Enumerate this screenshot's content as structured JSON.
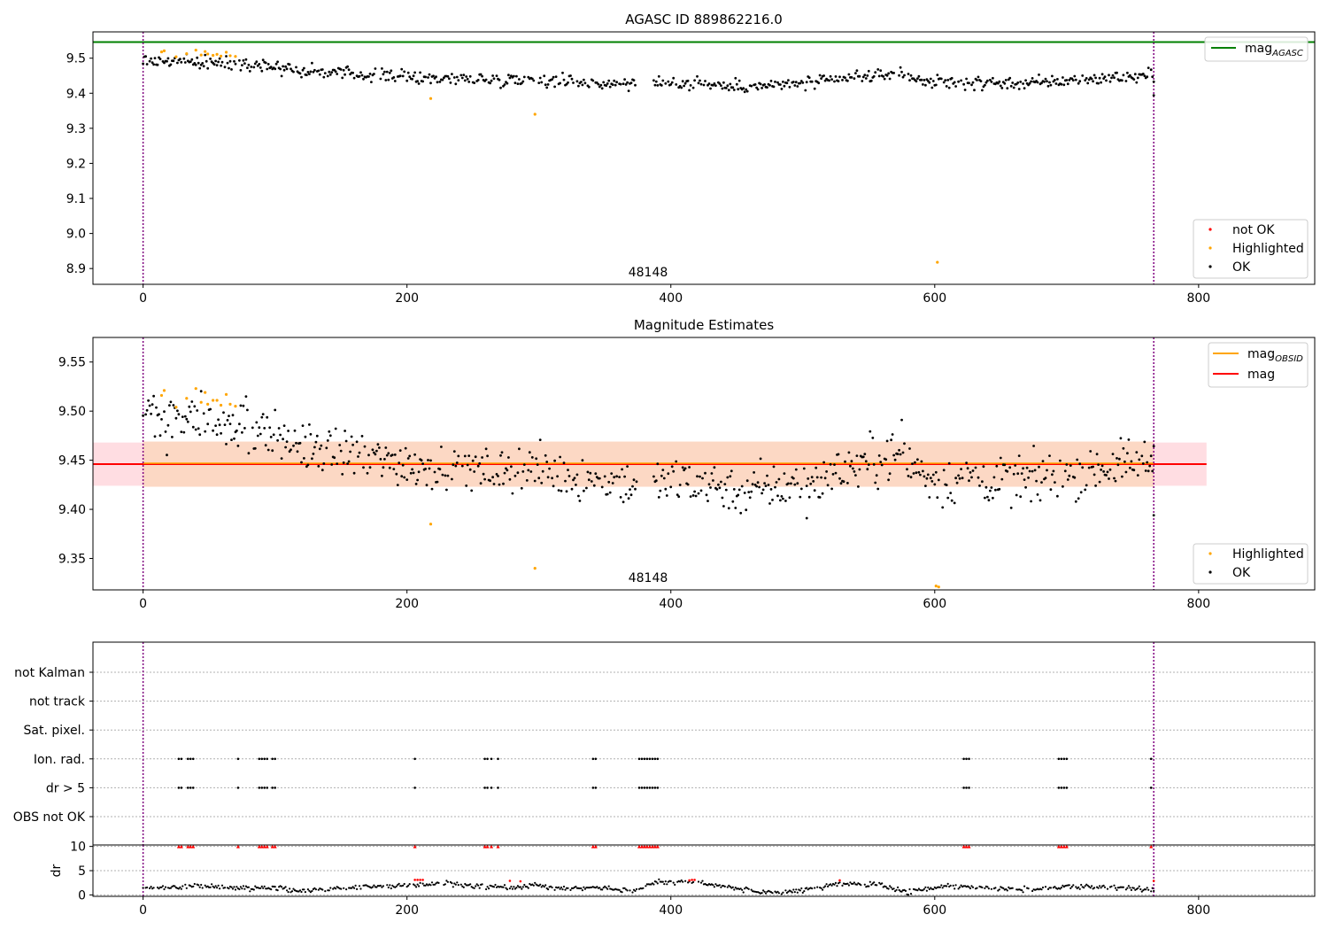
{
  "chart_data": [
    {
      "type": "scatter",
      "title": "AGASC ID 889862216.0",
      "xlim": [
        -38,
        888
      ],
      "ylim": [
        8.855,
        9.575
      ],
      "xticks": [
        0,
        200,
        400,
        600,
        800
      ],
      "yticks": [
        8.9,
        9.0,
        9.1,
        9.2,
        9.3,
        9.4,
        9.5
      ],
      "ytick_labels": [
        "8.9",
        "9.0",
        "9.1",
        "9.2",
        "9.3",
        "9.4",
        "9.5"
      ],
      "vlines": [
        0,
        766
      ],
      "hlines": [
        {
          "y": 9.546,
          "x0": -38,
          "x1": 888,
          "color": "#008000"
        }
      ],
      "obsid_label": {
        "text": "48148",
        "x": 383
      },
      "line_legend": [
        {
          "base": "mag",
          "sub": "AGASC",
          "color": "#008000"
        }
      ],
      "point_legend": [
        {
          "label": "not OK",
          "color": "#ff0000"
        },
        {
          "label": "Highlighted",
          "color": "#ffa500"
        },
        {
          "label": "OK",
          "color": "#000000"
        }
      ],
      "highlighted_points": [
        {
          "x": 14,
          "y": 9.518
        },
        {
          "x": 16,
          "y": 9.521
        },
        {
          "x": 25,
          "y": 9.504
        },
        {
          "x": 33,
          "y": 9.513
        },
        {
          "x": 40,
          "y": 9.523
        },
        {
          "x": 44,
          "y": 9.509
        },
        {
          "x": 47,
          "y": 9.519
        },
        {
          "x": 49,
          "y": 9.512
        },
        {
          "x": 53,
          "y": 9.508
        },
        {
          "x": 56,
          "y": 9.511
        },
        {
          "x": 59,
          "y": 9.506
        },
        {
          "x": 63,
          "y": 9.517
        },
        {
          "x": 66,
          "y": 9.507
        },
        {
          "x": 70,
          "y": 9.505
        },
        {
          "x": 218,
          "y": 9.385
        },
        {
          "x": 297,
          "y": 9.34
        },
        {
          "x": 602,
          "y": 8.918
        }
      ],
      "ok_trend": [
        {
          "x": 0,
          "y": 9.492
        },
        {
          "x": 30,
          "y": 9.49
        },
        {
          "x": 80,
          "y": 9.485
        },
        {
          "x": 120,
          "y": 9.465
        },
        {
          "x": 160,
          "y": 9.455
        },
        {
          "x": 210,
          "y": 9.445
        },
        {
          "x": 260,
          "y": 9.44
        },
        {
          "x": 300,
          "y": 9.44
        },
        {
          "x": 340,
          "y": 9.43
        },
        {
          "x": 380,
          "y": 9.425
        },
        {
          "x": 420,
          "y": 9.43
        },
        {
          "x": 450,
          "y": 9.42
        },
        {
          "x": 480,
          "y": 9.422
        },
        {
          "x": 510,
          "y": 9.43
        },
        {
          "x": 540,
          "y": 9.445
        },
        {
          "x": 570,
          "y": 9.455
        },
        {
          "x": 600,
          "y": 9.43
        },
        {
          "x": 640,
          "y": 9.43
        },
        {
          "x": 680,
          "y": 9.43
        },
        {
          "x": 720,
          "y": 9.442
        },
        {
          "x": 766,
          "y": 9.45
        }
      ],
      "ok_noise": 0.009,
      "ok_gaps": [
        [
          375,
          386
        ]
      ],
      "ok_extra": [
        {
          "x": 766,
          "y": 9.394
        }
      ]
    },
    {
      "type": "scatter",
      "title": "Magnitude Estimates",
      "xlim": [
        -38,
        888
      ],
      "ylim": [
        9.318,
        9.575
      ],
      "xticks": [
        0,
        200,
        400,
        600,
        800
      ],
      "yticks": [
        9.35,
        9.4,
        9.45,
        9.5,
        9.55
      ],
      "ytick_labels": [
        "9.35",
        "9.40",
        "9.45",
        "9.50",
        "9.55"
      ],
      "vlines": [
        0,
        766
      ],
      "mean_mag": 9.446,
      "band_outer": [
        9.424,
        9.468
      ],
      "band_inner": [
        9.423,
        9.469
      ],
      "band_extent": [
        -38,
        806
      ],
      "band_inner_extent": [
        0,
        766
      ],
      "band_colors": {
        "outer": "#ffdde2",
        "inner": "#fcd8c4",
        "mean_line": "#ff0000",
        "obsid_line": "#ffa500"
      },
      "obsid_label": {
        "text": "48148",
        "x": 383
      },
      "line_legend": [
        {
          "base": "mag",
          "sub": "OBSID",
          "color": "#ffa500"
        },
        {
          "base": "mag",
          "sub": "",
          "color": "#ff0000"
        }
      ],
      "point_legend": [
        {
          "label": "Highlighted",
          "color": "#ffa500"
        },
        {
          "label": "OK",
          "color": "#000000"
        }
      ],
      "highlighted_points": [
        {
          "x": 14,
          "y": 9.516
        },
        {
          "x": 16,
          "y": 9.521
        },
        {
          "x": 25,
          "y": 9.504
        },
        {
          "x": 33,
          "y": 9.513
        },
        {
          "x": 40,
          "y": 9.523
        },
        {
          "x": 44,
          "y": 9.509
        },
        {
          "x": 47,
          "y": 9.519
        },
        {
          "x": 49,
          "y": 9.507
        },
        {
          "x": 53,
          "y": 9.511
        },
        {
          "x": 56,
          "y": 9.511
        },
        {
          "x": 59,
          "y": 9.506
        },
        {
          "x": 63,
          "y": 9.517
        },
        {
          "x": 66,
          "y": 9.507
        },
        {
          "x": 70,
          "y": 9.505
        },
        {
          "x": 218,
          "y": 9.385
        },
        {
          "x": 297,
          "y": 9.34
        },
        {
          "x": 601,
          "y": 9.322
        },
        {
          "x": 603,
          "y": 9.321
        }
      ],
      "ok_trend": [
        {
          "x": 0,
          "y": 9.492
        },
        {
          "x": 30,
          "y": 9.49
        },
        {
          "x": 80,
          "y": 9.485
        },
        {
          "x": 120,
          "y": 9.465
        },
        {
          "x": 160,
          "y": 9.455
        },
        {
          "x": 210,
          "y": 9.445
        },
        {
          "x": 260,
          "y": 9.44
        },
        {
          "x": 300,
          "y": 9.44
        },
        {
          "x": 340,
          "y": 9.43
        },
        {
          "x": 380,
          "y": 9.425
        },
        {
          "x": 420,
          "y": 9.43
        },
        {
          "x": 450,
          "y": 9.42
        },
        {
          "x": 480,
          "y": 9.422
        },
        {
          "x": 510,
          "y": 9.43
        },
        {
          "x": 540,
          "y": 9.445
        },
        {
          "x": 570,
          "y": 9.455
        },
        {
          "x": 600,
          "y": 9.43
        },
        {
          "x": 640,
          "y": 9.43
        },
        {
          "x": 680,
          "y": 9.43
        },
        {
          "x": 720,
          "y": 9.442
        },
        {
          "x": 766,
          "y": 9.45
        }
      ],
      "ok_noise": 0.012,
      "ok_gaps": [
        [
          375,
          386
        ]
      ],
      "ok_extra": [
        {
          "x": 766,
          "y": 9.394
        },
        {
          "x": 575,
          "y": 9.491
        },
        {
          "x": 503,
          "y": 9.391
        }
      ]
    },
    {
      "type": "scatter",
      "title": "",
      "xlim": [
        -38,
        888
      ],
      "xticks": [
        0,
        200,
        400,
        600,
        800
      ],
      "vlines": [
        0,
        766
      ],
      "flag_rows": [
        "not Kalman",
        "not track",
        "Sat. pixel.",
        "Ion. rad.",
        "dr > 5",
        "OBS not OK"
      ],
      "flag_points": {
        "Ion. rad.": [
          27,
          29,
          34,
          36,
          38,
          72,
          88,
          90,
          92,
          94,
          98,
          100,
          206,
          259,
          261,
          264,
          269,
          341,
          343,
          376,
          378,
          380,
          382,
          384,
          386,
          388,
          390,
          622,
          624,
          626,
          694,
          696,
          698,
          700,
          764
        ],
        "dr > 5": [
          27,
          29,
          34,
          36,
          38,
          72,
          88,
          90,
          92,
          94,
          98,
          100,
          206,
          259,
          261,
          264,
          269,
          341,
          343,
          376,
          378,
          380,
          382,
          384,
          386,
          388,
          390,
          622,
          624,
          626,
          694,
          696,
          698,
          700,
          764
        ]
      },
      "dr_ylabel": "dr",
      "dr_ylim": [
        -0.3,
        10.3
      ],
      "dr_yticks": [
        0,
        5,
        10
      ],
      "dr_ytick_labels": [
        "0",
        "5",
        "10"
      ],
      "dr_above10_x": [
        27,
        29,
        34,
        36,
        38,
        72,
        88,
        90,
        92,
        94,
        98,
        100,
        206,
        259,
        261,
        264,
        269,
        341,
        343,
        376,
        378,
        380,
        382,
        384,
        386,
        388,
        390,
        622,
        624,
        626,
        694,
        696,
        698,
        700,
        764
      ],
      "dr_red_points": [
        {
          "x": 206,
          "y": 3.1
        },
        {
          "x": 208,
          "y": 3.1
        },
        {
          "x": 210,
          "y": 3.1
        },
        {
          "x": 212,
          "y": 3.1
        },
        {
          "x": 278,
          "y": 2.9
        },
        {
          "x": 286,
          "y": 2.8
        },
        {
          "x": 414,
          "y": 3.0
        },
        {
          "x": 416,
          "y": 3.1
        },
        {
          "x": 418,
          "y": 3.1
        },
        {
          "x": 528,
          "y": 3.0
        },
        {
          "x": 766,
          "y": 2.9
        }
      ],
      "dr_trend": [
        {
          "x": 0,
          "y": 1.2
        },
        {
          "x": 20,
          "y": 1.6
        },
        {
          "x": 40,
          "y": 2.0
        },
        {
          "x": 70,
          "y": 1.4
        },
        {
          "x": 100,
          "y": 1.5
        },
        {
          "x": 120,
          "y": 0.8
        },
        {
          "x": 160,
          "y": 1.6
        },
        {
          "x": 200,
          "y": 1.9
        },
        {
          "x": 230,
          "y": 2.4
        },
        {
          "x": 250,
          "y": 1.8
        },
        {
          "x": 280,
          "y": 1.5
        },
        {
          "x": 300,
          "y": 2.1
        },
        {
          "x": 320,
          "y": 1.3
        },
        {
          "x": 350,
          "y": 1.6
        },
        {
          "x": 370,
          "y": 0.7
        },
        {
          "x": 390,
          "y": 2.7
        },
        {
          "x": 420,
          "y": 2.6
        },
        {
          "x": 450,
          "y": 1.4
        },
        {
          "x": 470,
          "y": 0.3
        },
        {
          "x": 500,
          "y": 1.0
        },
        {
          "x": 530,
          "y": 2.3
        },
        {
          "x": 560,
          "y": 2.0
        },
        {
          "x": 580,
          "y": 0.6
        },
        {
          "x": 610,
          "y": 1.9
        },
        {
          "x": 640,
          "y": 1.4
        },
        {
          "x": 670,
          "y": 1.1
        },
        {
          "x": 700,
          "y": 1.7
        },
        {
          "x": 730,
          "y": 1.6
        },
        {
          "x": 766,
          "y": 1.0
        }
      ],
      "dr_noise": 0.25
    }
  ]
}
